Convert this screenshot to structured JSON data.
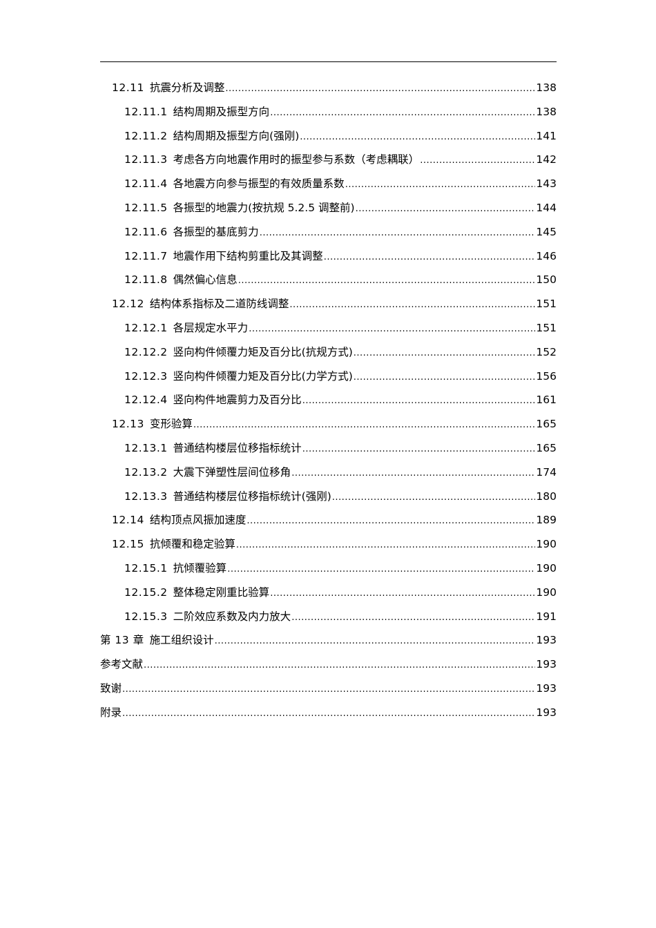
{
  "toc": [
    {
      "level": 2,
      "num": "12.11",
      "title": "抗震分析及调整",
      "page": "138"
    },
    {
      "level": 3,
      "num": "12.11.1",
      "title": "结构周期及振型方向",
      "page": "138"
    },
    {
      "level": 3,
      "num": "12.11.2",
      "title": "结构周期及振型方向(强刚)",
      "page": "141"
    },
    {
      "level": 3,
      "num": "12.11.3",
      "title": "考虑各方向地震作用时的振型参与系数（考虑耦联）",
      "page": "142"
    },
    {
      "level": 3,
      "num": "12.11.4",
      "title": "各地震方向参与振型的有效质量系数",
      "page": "143"
    },
    {
      "level": 3,
      "num": "12.11.5",
      "title": "各振型的地震力(按抗规 5.2.5 调整前)",
      "page": "144"
    },
    {
      "level": 3,
      "num": "12.11.6",
      "title": "各振型的基底剪力",
      "page": "145"
    },
    {
      "level": 3,
      "num": "12.11.7",
      "title": "地震作用下结构剪重比及其调整",
      "page": "146"
    },
    {
      "level": 3,
      "num": "12.11.8",
      "title": "偶然偏心信息",
      "page": "150"
    },
    {
      "level": 2,
      "num": "12.12",
      "title": "结构体系指标及二道防线调整",
      "page": "151"
    },
    {
      "level": 3,
      "num": "12.12.1",
      "title": "各层规定水平力",
      "page": "151"
    },
    {
      "level": 3,
      "num": "12.12.2",
      "title": "竖向构件倾覆力矩及百分比(抗规方式)",
      "page": "152"
    },
    {
      "level": 3,
      "num": "12.12.3",
      "title": "竖向构件倾覆力矩及百分比(力学方式)",
      "page": "156"
    },
    {
      "level": 3,
      "num": "12.12.4",
      "title": "竖向构件地震剪力及百分比",
      "page": "161"
    },
    {
      "level": 2,
      "num": "12.13",
      "title": "变形验算",
      "page": "165"
    },
    {
      "level": 3,
      "num": "12.13.1",
      "title": "普通结构楼层位移指标统计",
      "page": "165"
    },
    {
      "level": 3,
      "num": "12.13.2",
      "title": "大震下弹塑性层间位移角",
      "page": "174"
    },
    {
      "level": 3,
      "num": "12.13.3",
      "title": "普通结构楼层位移指标统计(强刚)",
      "page": "180"
    },
    {
      "level": 2,
      "num": "12.14",
      "title": "结构顶点风振加速度",
      "page": "189"
    },
    {
      "level": 2,
      "num": "12.15",
      "title": "抗倾覆和稳定验算",
      "page": "190"
    },
    {
      "level": 3,
      "num": "12.15.1",
      "title": "抗倾覆验算",
      "page": "190"
    },
    {
      "level": 3,
      "num": "12.15.2",
      "title": "整体稳定刚重比验算",
      "page": "190"
    },
    {
      "level": 3,
      "num": "12.15.3",
      "title": "二阶效应系数及内力放大",
      "page": "191"
    },
    {
      "level": 1,
      "num": "第 13 章",
      "title": "施工组织设计",
      "page": "193"
    },
    {
      "level": 1,
      "num": "",
      "title": "参考文献",
      "page": "193"
    },
    {
      "level": 1,
      "num": "",
      "title": "致谢",
      "page": "193"
    },
    {
      "level": 1,
      "num": "",
      "title": "附录",
      "page": "193"
    }
  ]
}
